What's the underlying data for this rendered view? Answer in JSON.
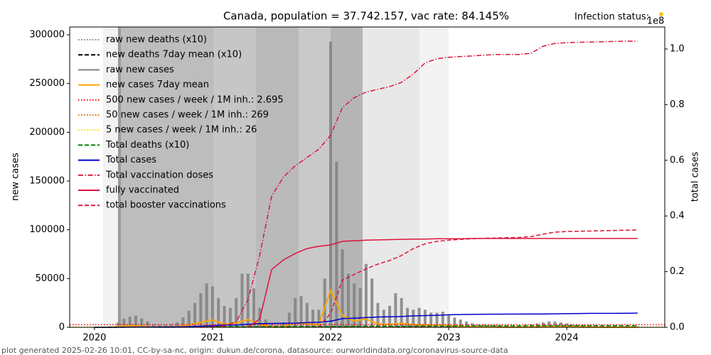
{
  "chart_data": {
    "type": "combo",
    "title": "Canada, population = 37.742.157, vac rate: 84.145%",
    "status_label": "Infection status:",
    "footer": "plot generated 2025-02-26 10:01, CC-by-sa-nc, origin: dukun.de/corona, datasource: ourworldindata.org/coronavirus-source-data",
    "ylabel": "new cases",
    "y2label": "total cases",
    "y2_offset_label": "1e8",
    "xlim": [
      2019.79,
      2024.83
    ],
    "xticks": [
      2020,
      2021,
      2022,
      2023,
      2024
    ],
    "ylim": [
      0,
      308000
    ],
    "yticks": [
      0,
      50000,
      100000,
      150000,
      200000,
      250000,
      300000
    ],
    "y2lim": [
      0,
      1.079
    ],
    "y2ticks": [
      {
        "value": 0,
        "label": "0.0"
      },
      0.2,
      0.4,
      0.6,
      0.8,
      {
        "value": 1,
        "label": "1.0"
      }
    ],
    "x": [
      2020.0,
      2020.1,
      2020.2,
      2020.3,
      2020.4,
      2020.5,
      2020.6,
      2020.7,
      2020.8,
      2020.9,
      2021.0,
      2021.1,
      2021.2,
      2021.3,
      2021.4,
      2021.5,
      2021.6,
      2021.7,
      2021.8,
      2021.9,
      2022.0,
      2022.1,
      2022.2,
      2022.3,
      2022.4,
      2022.5,
      2022.6,
      2022.7,
      2022.8,
      2022.9,
      2023.0,
      2023.1,
      2023.2,
      2023.3,
      2023.4,
      2023.5,
      2023.6,
      2023.7,
      2023.8,
      2023.9,
      2024.0,
      2024.1,
      2024.2,
      2024.3,
      2024.4,
      2024.5,
      2024.6
    ],
    "series": [
      {
        "name": "raw new deaths (x10)",
        "type": "line",
        "style": "dotted",
        "color": "#808080",
        "axis": "y",
        "values": [
          0,
          0,
          300,
          1500,
          800,
          100,
          50,
          100,
          400,
          1200,
          1400,
          600,
          300,
          400,
          300,
          100,
          50,
          200,
          400,
          300,
          600,
          900,
          500,
          400,
          300,
          300,
          400,
          400,
          400,
          300,
          300,
          300,
          200,
          150,
          100,
          100,
          80,
          100,
          150,
          200,
          150,
          100,
          80,
          60,
          50,
          50,
          40
        ]
      },
      {
        "name": "new deaths 7day mean (x10)",
        "type": "line",
        "style": "dashed",
        "color": "#000000",
        "axis": "y",
        "values": [
          0,
          0,
          250,
          1400,
          900,
          150,
          50,
          100,
          350,
          1100,
          1350,
          700,
          300,
          350,
          300,
          120,
          60,
          180,
          380,
          320,
          550,
          850,
          550,
          400,
          320,
          300,
          380,
          400,
          380,
          320,
          300,
          280,
          220,
          160,
          110,
          100,
          90,
          100,
          140,
          190,
          160,
          110,
          80,
          60,
          55,
          50,
          45
        ]
      },
      {
        "name": "raw new cases",
        "type": "bar",
        "style": "solid",
        "color": "#808080",
        "axis": "y",
        "x": [
          2020.2,
          2020.25,
          2020.3,
          2020.35,
          2020.4,
          2020.45,
          2020.5,
          2020.55,
          2020.6,
          2020.65,
          2020.7,
          2020.75,
          2020.8,
          2020.85,
          2020.9,
          2020.95,
          2021.0,
          2021.05,
          2021.1,
          2021.15,
          2021.2,
          2021.25,
          2021.3,
          2021.35,
          2021.4,
          2021.45,
          2021.5,
          2021.55,
          2021.6,
          2021.65,
          2021.7,
          2021.75,
          2021.8,
          2021.85,
          2021.9,
          2021.95,
          2022.0,
          2022.05,
          2022.1,
          2022.15,
          2022.2,
          2022.25,
          2022.3,
          2022.35,
          2022.4,
          2022.45,
          2022.5,
          2022.55,
          2022.6,
          2022.65,
          2022.7,
          2022.75,
          2022.8,
          2022.85,
          2022.9,
          2022.95,
          2023.0,
          2023.05,
          2023.1,
          2023.15,
          2023.2,
          2023.25,
          2023.3,
          2023.35,
          2023.4,
          2023.45,
          2023.5,
          2023.55,
          2023.6,
          2023.65,
          2023.7,
          2023.75,
          2023.8,
          2023.85,
          2023.9,
          2023.95,
          2024.0,
          2024.05,
          2024.1,
          2024.15,
          2024.2,
          2024.25,
          2024.3,
          2024.35,
          2024.4,
          2024.45,
          2024.5,
          2024.55,
          2024.6
        ],
        "values": [
          5000,
          9000,
          11000,
          12000,
          9000,
          6000,
          3000,
          2500,
          2500,
          3000,
          5000,
          10000,
          17000,
          25000,
          35000,
          45000,
          42000,
          30000,
          22000,
          20000,
          30000,
          55000,
          55000,
          40000,
          20000,
          8000,
          3000,
          2000,
          5000,
          15000,
          30000,
          32000,
          25000,
          18000,
          18000,
          50000,
          293000,
          170000,
          80000,
          55000,
          45000,
          40000,
          65000,
          50000,
          25000,
          18000,
          22000,
          35000,
          30000,
          20000,
          18000,
          20000,
          18000,
          15000,
          15000,
          16000,
          13000,
          10000,
          8000,
          6000,
          4000,
          3000,
          3000,
          2500,
          2500,
          2000,
          2000,
          2000,
          2000,
          2500,
          3000,
          4000,
          5000,
          6000,
          6000,
          5000,
          4000,
          3000,
          2500,
          2000,
          2000,
          1500,
          1500,
          1500,
          1500,
          1200,
          1200,
          1000,
          1000
        ]
      },
      {
        "name": "new cases 7day mean",
        "type": "line",
        "style": "solid",
        "color": "#ffa500",
        "axis": "y",
        "width": 2,
        "values": [
          0,
          0,
          700,
          1500,
          1300,
          400,
          400,
          700,
          2500,
          5000,
          7500,
          3000,
          4500,
          8000,
          3000,
          500,
          700,
          4500,
          3500,
          2700,
          38000,
          12000,
          6500,
          8500,
          3500,
          3000,
          4000,
          2700,
          2500,
          2200,
          1800,
          1100,
          600,
          450,
          400,
          300,
          300,
          450,
          800,
          850,
          600,
          400,
          300,
          250,
          250,
          250,
          200
        ]
      },
      {
        "name": "500 new cases / week / 1M inh.: 2.695",
        "type": "hline",
        "style": "dotted",
        "color": "#ff0000",
        "axis": "y",
        "value": 2695
      },
      {
        "name": "50 new cases / week / 1M inh.: 269",
        "type": "hline",
        "style": "dotted",
        "color": "#cc7000",
        "axis": "y",
        "value": 269
      },
      {
        "name": "5 new cases / week / 1M inh.: 26",
        "type": "hline",
        "style": "dotted",
        "color": "#ffd700",
        "axis": "y",
        "value": 26
      },
      {
        "name": "Total deaths (x10)",
        "type": "line",
        "style": "dashed",
        "color": "#008000",
        "axis": "y2",
        "values": [
          0,
          0,
          0.0001,
          0.0008,
          0.0009,
          0.0009,
          0.0009,
          0.001,
          0.001,
          0.0013,
          0.0016,
          0.0021,
          0.0022,
          0.0023,
          0.0024,
          0.0026,
          0.0026,
          0.0027,
          0.0028,
          0.0029,
          0.003,
          0.0034,
          0.0037,
          0.004,
          0.0041,
          0.0042,
          0.0043,
          0.0045,
          0.0046,
          0.0048,
          0.0049,
          0.005,
          0.0051,
          0.0051,
          0.0052,
          0.0052,
          0.0052,
          0.0053,
          0.0054,
          0.0055,
          0.0056,
          0.0057,
          0.0057,
          0.0058,
          0.0058,
          0.0058,
          0.0058
        ]
      },
      {
        "name": "Total cases",
        "type": "line",
        "style": "solid",
        "color": "#0000cc",
        "axis": "y2",
        "values": [
          0,
          0,
          0,
          0.0006,
          0.001,
          0.0011,
          0.0013,
          0.0015,
          0.0022,
          0.0038,
          0.0058,
          0.0078,
          0.0085,
          0.0112,
          0.0135,
          0.014,
          0.0142,
          0.015,
          0.0168,
          0.018,
          0.022,
          0.031,
          0.033,
          0.035,
          0.037,
          0.038,
          0.039,
          0.041,
          0.042,
          0.043,
          0.045,
          0.046,
          0.0465,
          0.047,
          0.0472,
          0.0474,
          0.0475,
          0.0477,
          0.048,
          0.0485,
          0.049,
          0.0495,
          0.05,
          0.05,
          0.05,
          0.0505,
          0.051
        ]
      },
      {
        "name": "Total vaccination doses",
        "type": "line",
        "style": "dashdot",
        "color": "#dc143c",
        "axis": "y2",
        "values": [
          null,
          null,
          null,
          null,
          null,
          null,
          null,
          null,
          null,
          0,
          0.002,
          0.005,
          0.02,
          0.1,
          0.26,
          0.47,
          0.54,
          0.58,
          0.61,
          0.64,
          0.69,
          0.79,
          0.825,
          0.845,
          0.855,
          0.865,
          0.88,
          0.91,
          0.95,
          0.965,
          0.97,
          0.973,
          0.975,
          0.978,
          0.98,
          0.98,
          0.98,
          0.985,
          1.01,
          1.02,
          1.023,
          1.024,
          1.025,
          1.026,
          1.027,
          1.028,
          1.028
        ]
      },
      {
        "name": "fully vaccinated",
        "type": "line",
        "style": "solid",
        "color": "#dc143c",
        "axis": "y2",
        "values": [
          null,
          null,
          null,
          null,
          null,
          null,
          null,
          null,
          null,
          null,
          null,
          null,
          null,
          0,
          0.03,
          0.207,
          0.242,
          0.265,
          0.283,
          0.291,
          0.296,
          0.309,
          0.311,
          0.313,
          0.314,
          0.315,
          0.316,
          0.317,
          0.317,
          0.318,
          0.318,
          0.318,
          0.319,
          0.319,
          0.319,
          0.319,
          0.319,
          0.319,
          0.319,
          0.319,
          0.319,
          0.319,
          0.319,
          0.319,
          0.319,
          0.319,
          0.319
        ]
      },
      {
        "name": "total booster vaccinations",
        "type": "line",
        "style": "dashed",
        "color": "#dc143c",
        "axis": "y2",
        "values": [
          null,
          null,
          null,
          null,
          null,
          null,
          null,
          null,
          null,
          null,
          null,
          null,
          null,
          null,
          null,
          null,
          null,
          null,
          null,
          0,
          0.05,
          0.17,
          0.19,
          0.21,
          0.227,
          0.24,
          0.258,
          0.283,
          0.3,
          0.309,
          0.313,
          0.316,
          0.318,
          0.32,
          0.321,
          0.322,
          0.323,
          0.326,
          0.335,
          0.342,
          0.344,
          0.345,
          0.346,
          0.347,
          0.348,
          0.349,
          0.35
        ]
      }
    ]
  }
}
